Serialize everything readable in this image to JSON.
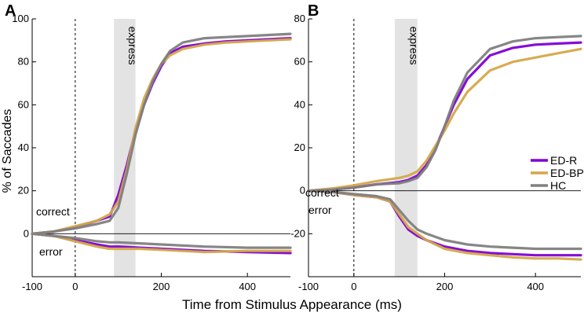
{
  "figure": {
    "xlabel": "Time from Stimulus Appearance (ms)",
    "ylabel": "% of Saccades"
  },
  "colors": {
    "ED-R": "#7f00d4",
    "ED-BP": "#d4a84a",
    "HC": "#808080",
    "shade": "#e3e3e3"
  },
  "chart_data": [
    {
      "type": "line",
      "panel": "A",
      "xlim": [
        -100,
        500
      ],
      "ylim": [
        -20,
        100
      ],
      "xticks": [
        -100,
        0,
        200,
        400
      ],
      "yticks": [
        0,
        20,
        40,
        60,
        80,
        100
      ],
      "express_window": [
        90,
        140
      ],
      "shade_label": "express",
      "text_correct": "correct",
      "text_error": "error",
      "legend": [],
      "series": [
        {
          "name": "ED-R",
          "group": "correct",
          "x": [
            -100,
            -50,
            0,
            50,
            80,
            100,
            120,
            140,
            160,
            180,
            200,
            220,
            250,
            300,
            350,
            400,
            450,
            500
          ],
          "values": [
            0,
            1,
            3,
            6,
            8,
            18,
            32,
            48,
            60,
            70,
            78,
            84,
            87,
            88.5,
            89.5,
            90,
            90.5,
            91
          ]
        },
        {
          "name": "ED-BP",
          "group": "correct",
          "x": [
            -100,
            -50,
            0,
            50,
            80,
            100,
            120,
            140,
            160,
            180,
            200,
            220,
            250,
            300,
            350,
            400,
            450,
            500
          ],
          "values": [
            0,
            1,
            3.5,
            6,
            9,
            15,
            30,
            49,
            63,
            72,
            79,
            83,
            86,
            88,
            89,
            89.5,
            90,
            90.5
          ]
        },
        {
          "name": "HC",
          "group": "correct",
          "x": [
            -100,
            -50,
            0,
            50,
            80,
            100,
            120,
            140,
            160,
            180,
            200,
            220,
            250,
            300,
            350,
            400,
            450,
            500
          ],
          "values": [
            0,
            1,
            2.5,
            4.5,
            6,
            12,
            28,
            46,
            60,
            71,
            79,
            85,
            89,
            91,
            91.5,
            92,
            92.5,
            93
          ]
        },
        {
          "name": "ED-R",
          "group": "error",
          "x": [
            -100,
            -50,
            0,
            50,
            80,
            100,
            150,
            200,
            300,
            400,
            500
          ],
          "values": [
            0,
            -1,
            -3,
            -5,
            -6,
            -6,
            -6.5,
            -7,
            -8,
            -8.5,
            -9
          ]
        },
        {
          "name": "ED-BP",
          "group": "error",
          "x": [
            -100,
            -50,
            0,
            50,
            80,
            100,
            150,
            200,
            300,
            400,
            500
          ],
          "values": [
            0,
            -1,
            -3.5,
            -6,
            -7,
            -7,
            -7,
            -7.5,
            -8.5,
            -8,
            -8
          ]
        },
        {
          "name": "HC",
          "group": "error",
          "x": [
            -100,
            -50,
            0,
            50,
            80,
            100,
            150,
            200,
            300,
            400,
            500
          ],
          "values": [
            0,
            -1,
            -2,
            -3.5,
            -4,
            -4,
            -4.5,
            -5,
            -6,
            -6.5,
            -6.5
          ]
        }
      ]
    },
    {
      "type": "line",
      "panel": "B",
      "xlim": [
        -100,
        500
      ],
      "ylim": [
        -40,
        80
      ],
      "xticks": [
        -100,
        0,
        200,
        400
      ],
      "yticks": [
        -20,
        0,
        20,
        40,
        60,
        80
      ],
      "express_window": [
        90,
        140
      ],
      "shade_label": "express",
      "text_correct": "correct",
      "text_error": "error",
      "legend": [
        "ED-R",
        "ED-BP",
        "HC"
      ],
      "series": [
        {
          "name": "ED-R",
          "group": "correct",
          "x": [
            -100,
            -50,
            0,
            50,
            100,
            120,
            140,
            160,
            180,
            200,
            220,
            250,
            300,
            350,
            400,
            450,
            500
          ],
          "values": [
            0,
            0.5,
            1.5,
            3,
            4,
            5,
            7,
            12,
            20,
            30,
            40,
            52,
            63,
            66.5,
            68,
            68.5,
            69
          ]
        },
        {
          "name": "ED-BP",
          "group": "correct",
          "x": [
            -100,
            -50,
            0,
            50,
            100,
            120,
            140,
            160,
            180,
            200,
            220,
            250,
            300,
            350,
            400,
            450,
            500
          ],
          "values": [
            0,
            1,
            2.5,
            4.5,
            6,
            7,
            9,
            14,
            21,
            28,
            36,
            46,
            56,
            60,
            62,
            64,
            66
          ]
        },
        {
          "name": "HC",
          "group": "correct",
          "x": [
            -100,
            -50,
            0,
            50,
            100,
            120,
            140,
            160,
            180,
            200,
            220,
            250,
            300,
            350,
            400,
            450,
            500
          ],
          "values": [
            0,
            0.5,
            1.5,
            3,
            3.5,
            4.5,
            6,
            11,
            19,
            30,
            42,
            55,
            66,
            69.5,
            71,
            71.5,
            72
          ]
        },
        {
          "name": "ED-R",
          "group": "error",
          "x": [
            -100,
            -50,
            0,
            50,
            80,
            100,
            120,
            140,
            160,
            200,
            250,
            300,
            350,
            400,
            450,
            500
          ],
          "values": [
            0,
            -0.5,
            -2,
            -3,
            -5,
            -12,
            -18,
            -21,
            -23,
            -26,
            -28,
            -29,
            -29.5,
            -30,
            -30,
            -30
          ]
        },
        {
          "name": "ED-BP",
          "group": "error",
          "x": [
            -100,
            -50,
            0,
            50,
            80,
            100,
            120,
            140,
            160,
            200,
            250,
            300,
            350,
            400,
            450,
            500
          ],
          "values": [
            0,
            -0.5,
            -2,
            -3,
            -5,
            -11,
            -17,
            -20,
            -23,
            -27,
            -29,
            -30,
            -31,
            -31.5,
            -31.5,
            -32
          ]
        },
        {
          "name": "HC",
          "group": "error",
          "x": [
            -100,
            -50,
            0,
            50,
            80,
            100,
            120,
            140,
            160,
            200,
            250,
            300,
            350,
            400,
            450,
            500
          ],
          "values": [
            0,
            -0.5,
            -1.5,
            -2.5,
            -4,
            -9,
            -14,
            -18,
            -20,
            -23,
            -25,
            -26,
            -26.5,
            -27,
            -27,
            -27
          ]
        }
      ]
    }
  ]
}
